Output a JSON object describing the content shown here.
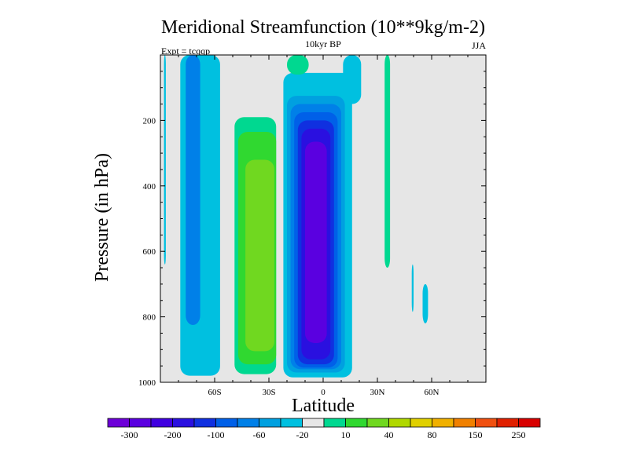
{
  "chart_data": {
    "type": "heatmap",
    "title": "Meridional Streamfunction (10**9kg/m-2)",
    "subtitle_center": "10kyr BP",
    "subtitle_left": "Expt = tcqqp",
    "subtitle_right": "JJA",
    "xlabel": "Latitude",
    "ylabel": "Pressure (in hPa)",
    "xlim": [
      -90,
      90
    ],
    "ylim": [
      0,
      1000
    ],
    "y_inverted": true,
    "x_ticks": [
      {
        "value": -60,
        "label": "60S"
      },
      {
        "value": -30,
        "label": "30S"
      },
      {
        "value": 0,
        "label": "0"
      },
      {
        "value": 30,
        "label": "30N"
      },
      {
        "value": 60,
        "label": "60N"
      }
    ],
    "y_ticks": [
      {
        "value": 200,
        "label": "200"
      },
      {
        "value": 400,
        "label": "400"
      },
      {
        "value": 600,
        "label": "600"
      },
      {
        "value": 800,
        "label": "800"
      },
      {
        "value": 1000,
        "label": "1000"
      }
    ],
    "background_color": "#e6e6e6",
    "colorbar": {
      "colors": [
        "#6d00d8",
        "#5a00e0",
        "#4000e0",
        "#2a10e0",
        "#1030e0",
        "#0060e8",
        "#0080e8",
        "#00a0e0",
        "#00c0e0",
        "#e6e6e6",
        "#00d890",
        "#30d830",
        "#70d820",
        "#b0d800",
        "#e0d000",
        "#f0b000",
        "#f08000",
        "#f05010",
        "#e02000",
        "#d80000"
      ],
      "labels": [
        {
          "after_index": 0,
          "text": "-300"
        },
        {
          "after_index": 2,
          "text": "-200"
        },
        {
          "after_index": 4,
          "text": "-100"
        },
        {
          "after_index": 6,
          "text": "-60"
        },
        {
          "after_index": 8,
          "text": "-20"
        },
        {
          "after_index": 10,
          "text": "10"
        },
        {
          "after_index": 12,
          "text": "40"
        },
        {
          "after_index": 14,
          "text": "80"
        },
        {
          "after_index": 16,
          "text": "150"
        },
        {
          "after_index": 18,
          "text": "250"
        }
      ]
    },
    "regions": [
      {
        "name": "sh-cell-outer",
        "color": "#00d890",
        "lat": [
          -49,
          -26
        ],
        "p": [
          190,
          975
        ]
      },
      {
        "name": "sh-cell-mid",
        "color": "#30d830",
        "lat": [
          -47,
          -26
        ],
        "p": [
          235,
          945
        ]
      },
      {
        "name": "sh-cell-core",
        "color": "#70d820",
        "lat": [
          -43,
          -27
        ],
        "p": [
          320,
          905
        ]
      },
      {
        "name": "nh-cell-l1",
        "color": "#00c0e0",
        "lat": [
          -22,
          16
        ],
        "p": [
          55,
          985
        ]
      },
      {
        "name": "nh-cell-l2",
        "color": "#00a0e0",
        "lat": [
          -20,
          12
        ],
        "p": [
          125,
          970
        ]
      },
      {
        "name": "nh-cell-l3",
        "color": "#0080e8",
        "lat": [
          -18,
          10
        ],
        "p": [
          150,
          960
        ]
      },
      {
        "name": "nh-cell-l4",
        "color": "#0060e8",
        "lat": [
          -16,
          8
        ],
        "p": [
          175,
          955
        ]
      },
      {
        "name": "nh-cell-l5",
        "color": "#1030e0",
        "lat": [
          -14,
          6
        ],
        "p": [
          200,
          945
        ]
      },
      {
        "name": "nh-cell-l6",
        "color": "#2a10e0",
        "lat": [
          -12,
          4
        ],
        "p": [
          225,
          930
        ]
      },
      {
        "name": "nh-cell-core",
        "color": "#5a00e0",
        "lat": [
          -10,
          2
        ],
        "p": [
          265,
          880
        ]
      },
      {
        "name": "sh-outer-cell",
        "color": "#00c0e0",
        "lat": [
          -79,
          -57
        ],
        "p": [
          0,
          980
        ]
      },
      {
        "name": "sh-outer-cell-core",
        "color": "#0080e8",
        "lat": [
          -76,
          -68
        ],
        "p": [
          0,
          825
        ]
      },
      {
        "name": "strip-78s",
        "color": "#00c0e0",
        "lat": [
          -88,
          -87
        ],
        "p": [
          0,
          640
        ]
      },
      {
        "name": "upper-10n-blob",
        "color": "#00c0e0",
        "lat": [
          11,
          21
        ],
        "p": [
          0,
          150
        ]
      },
      {
        "name": "upper-eq-blob",
        "color": "#00d890",
        "lat": [
          -20,
          -8
        ],
        "p": [
          0,
          60
        ]
      },
      {
        "name": "strip-35n",
        "color": "#00d890",
        "lat": [
          34,
          37
        ],
        "p": [
          0,
          650
        ]
      },
      {
        "name": "patch-55n",
        "color": "#00c0e0",
        "lat": [
          49,
          50
        ],
        "p": [
          640,
          785
        ]
      },
      {
        "name": "patch-58n",
        "color": "#00c0e0",
        "lat": [
          55,
          58
        ],
        "p": [
          700,
          820
        ]
      }
    ]
  }
}
